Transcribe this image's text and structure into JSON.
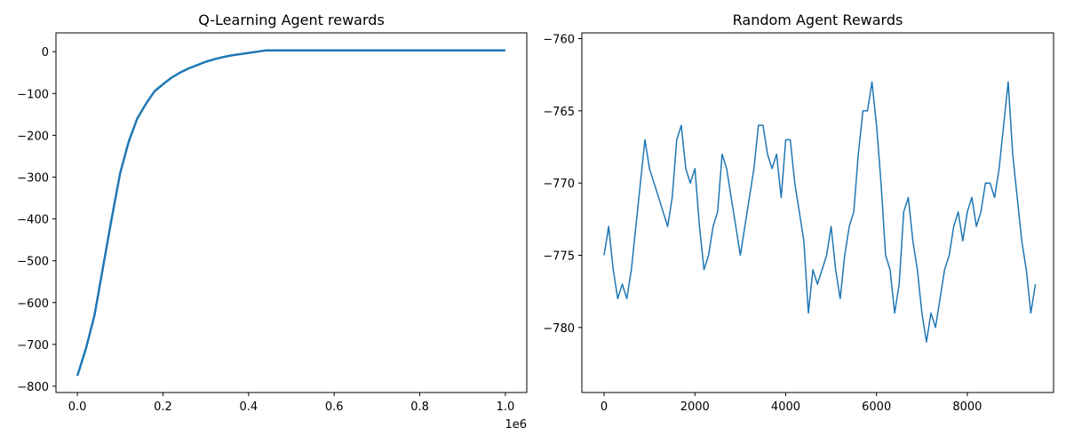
{
  "chart_data": [
    {
      "type": "line",
      "title": "Q-Learning Agent rewards",
      "color": "#1f77b4",
      "line_width": 2.5,
      "x": [
        0,
        20000,
        40000,
        60000,
        80000,
        100000,
        120000,
        140000,
        160000,
        180000,
        200000,
        220000,
        240000,
        260000,
        280000,
        300000,
        320000,
        340000,
        360000,
        380000,
        400000,
        420000,
        440000,
        500000,
        600000,
        700000,
        800000,
        900000,
        1000000
      ],
      "values": [
        -775,
        -710,
        -630,
        -515,
        -400,
        -290,
        -215,
        -160,
        -125,
        -95,
        -78,
        -62,
        -50,
        -40,
        -32,
        -24,
        -18,
        -13,
        -9,
        -6,
        -3,
        0,
        3,
        3,
        3,
        3,
        3,
        3,
        3
      ],
      "xlim": [
        -50000,
        1050000
      ],
      "xticks": [
        {
          "value": 0,
          "label": "0.0"
        },
        {
          "value": 200000,
          "label": "0.2"
        },
        {
          "value": 400000,
          "label": "0.4"
        },
        {
          "value": 600000,
          "label": "0.6"
        },
        {
          "value": 800000,
          "label": "0.8"
        },
        {
          "value": 1000000,
          "label": "1.0"
        }
      ],
      "x_offset_label": "1e6",
      "ylim": [
        -815,
        45
      ],
      "yticks": [
        0,
        {
          "value": -100,
          "label": "−100"
        },
        {
          "value": -200,
          "label": "−200"
        },
        {
          "value": -300,
          "label": "−300"
        },
        {
          "value": -400,
          "label": "−400"
        },
        {
          "value": -500,
          "label": "−500"
        },
        {
          "value": -600,
          "label": "−600"
        },
        {
          "value": -700,
          "label": "−700"
        },
        {
          "value": -800,
          "label": "−800"
        }
      ]
    },
    {
      "type": "line",
      "title": "Random Agent Rewards",
      "color": "#1f77b4",
      "line_width": 1.5,
      "x": [
        0,
        100,
        200,
        300,
        400,
        500,
        600,
        700,
        800,
        900,
        1000,
        1100,
        1200,
        1300,
        1400,
        1500,
        1600,
        1700,
        1800,
        1900,
        2000,
        2100,
        2200,
        2300,
        2400,
        2500,
        2600,
        2700,
        2800,
        2900,
        3000,
        3100,
        3200,
        3300,
        3400,
        3500,
        3600,
        3700,
        3800,
        3900,
        4000,
        4100,
        4200,
        4300,
        4400,
        4500,
        4600,
        4700,
        4800,
        4900,
        5000,
        5100,
        5200,
        5300,
        5400,
        5500,
        5600,
        5700,
        5800,
        5900,
        6000,
        6100,
        6200,
        6300,
        6400,
        6500,
        6600,
        6700,
        6800,
        6900,
        7000,
        7100,
        7200,
        7300,
        7400,
        7500,
        7600,
        7700,
        7800,
        7900,
        8000,
        8100,
        8200,
        8300,
        8400,
        8500,
        8600,
        8700,
        8800,
        8900,
        9000,
        9100,
        9200,
        9300,
        9400,
        9500
      ],
      "values": [
        -775,
        -773,
        -776,
        -778,
        -777,
        -778,
        -776,
        -773,
        -770,
        -767,
        -769,
        -770,
        -771,
        -772,
        -773,
        -771,
        -767,
        -766,
        -769,
        -770,
        -769,
        -773,
        -776,
        -775,
        -773,
        -772,
        -768,
        -769,
        -771,
        -773,
        -775,
        -773,
        -771,
        -769,
        -766,
        -766,
        -768,
        -769,
        -768,
        -771,
        -767,
        -767,
        -770,
        -772,
        -774,
        -779,
        -776,
        -777,
        -776,
        -775,
        -773,
        -776,
        -778,
        -775,
        -773,
        -772,
        -768,
        -765,
        -765,
        -763,
        -766,
        -770,
        -775,
        -776,
        -779,
        -777,
        -772,
        -771,
        -774,
        -776,
        -779,
        -781,
        -779,
        -780,
        -778,
        -776,
        -775,
        -773,
        -772,
        -774,
        -772,
        -771,
        -773,
        -772,
        -770,
        -770,
        -771,
        -769,
        -766,
        -763,
        -768,
        -771,
        -774,
        -776,
        -779,
        -777
      ],
      "xlim": [
        -490,
        9900
      ],
      "xticks": [
        0,
        2000,
        4000,
        6000,
        8000
      ],
      "ylim": [
        -784.5,
        -759.6
      ],
      "yticks": [
        {
          "value": -760,
          "label": "−760"
        },
        {
          "value": -765,
          "label": "−765"
        },
        {
          "value": -770,
          "label": "−770"
        },
        {
          "value": -775,
          "label": "−775"
        },
        {
          "value": -780,
          "label": "−780"
        }
      ]
    }
  ]
}
